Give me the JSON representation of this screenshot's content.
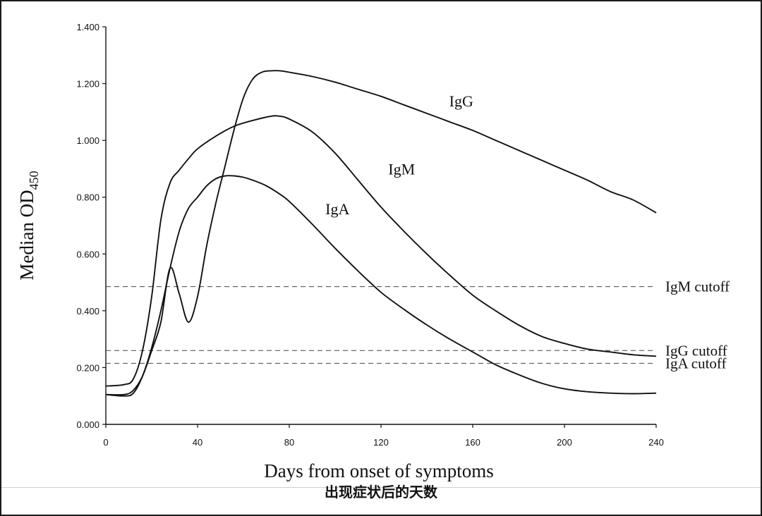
{
  "chart_data": {
    "type": "line",
    "xlabel": "Days from onset of symptoms",
    "ylabel_main": "Median OD",
    "ylabel_sub": "450",
    "xlim": [
      0,
      240
    ],
    "ylim": [
      0,
      1.4
    ],
    "xticks": [
      0,
      40,
      80,
      120,
      160,
      200,
      240
    ],
    "xtick_labels": [
      "0",
      "40",
      "80",
      "120",
      "160",
      "200",
      "240"
    ],
    "yticks": [
      0,
      0.2,
      0.4,
      0.6,
      0.8,
      1.0,
      1.2,
      1.4
    ],
    "ytick_labels": [
      "0.000",
      "0.200",
      "0.400",
      "0.600",
      "0.800",
      "1.000",
      "1.200",
      "1.400"
    ],
    "grid": false,
    "series": [
      {
        "name": "IgG",
        "x": [
          0,
          8,
          12,
          16,
          20,
          24,
          28,
          32,
          36,
          40,
          44,
          48,
          52,
          56,
          60,
          64,
          68,
          72,
          76,
          80,
          90,
          100,
          110,
          120,
          130,
          140,
          150,
          160,
          170,
          180,
          190,
          200,
          210,
          220,
          230,
          240
        ],
        "y": [
          0.105,
          0.105,
          0.12,
          0.17,
          0.26,
          0.36,
          0.55,
          0.46,
          0.36,
          0.45,
          0.63,
          0.78,
          0.91,
          1.04,
          1.15,
          1.215,
          1.24,
          1.245,
          1.245,
          1.24,
          1.225,
          1.205,
          1.18,
          1.155,
          1.125,
          1.095,
          1.065,
          1.035,
          1.0,
          0.965,
          0.93,
          0.895,
          0.86,
          0.82,
          0.79,
          0.745
        ]
      },
      {
        "name": "IgM",
        "x": [
          0,
          8,
          12,
          16,
          20,
          24,
          28,
          32,
          36,
          40,
          48,
          56,
          64,
          72,
          76,
          80,
          90,
          100,
          110,
          120,
          130,
          140,
          150,
          160,
          170,
          180,
          190,
          200,
          210,
          220,
          230,
          240
        ],
        "y": [
          0.135,
          0.14,
          0.16,
          0.26,
          0.45,
          0.72,
          0.85,
          0.895,
          0.935,
          0.97,
          1.015,
          1.05,
          1.07,
          1.085,
          1.085,
          1.075,
          1.03,
          0.955,
          0.86,
          0.765,
          0.68,
          0.6,
          0.525,
          0.455,
          0.4,
          0.35,
          0.31,
          0.285,
          0.265,
          0.255,
          0.245,
          0.24
        ]
      },
      {
        "name": "IgA",
        "x": [
          0,
          8,
          12,
          16,
          20,
          24,
          28,
          32,
          36,
          40,
          44,
          48,
          52,
          56,
          60,
          64,
          70,
          76,
          80,
          90,
          100,
          110,
          120,
          130,
          140,
          150,
          160,
          170,
          180,
          190,
          200,
          210,
          220,
          230,
          240
        ],
        "y": [
          0.105,
          0.1,
          0.11,
          0.17,
          0.27,
          0.4,
          0.55,
          0.68,
          0.76,
          0.8,
          0.84,
          0.865,
          0.875,
          0.875,
          0.87,
          0.86,
          0.84,
          0.81,
          0.785,
          0.705,
          0.62,
          0.54,
          0.465,
          0.405,
          0.35,
          0.3,
          0.255,
          0.21,
          0.175,
          0.145,
          0.125,
          0.115,
          0.11,
          0.108,
          0.11
        ]
      }
    ],
    "series_labels": [
      {
        "text": "IgG",
        "x": 155,
        "y": 1.12
      },
      {
        "text": "IgM",
        "x": 129,
        "y": 0.88
      },
      {
        "text": "IgA",
        "x": 101,
        "y": 0.74
      }
    ],
    "cutoffs": [
      {
        "name": "IgM cutoff",
        "value": 0.485
      },
      {
        "name": "IgG cutoff",
        "value": 0.26
      },
      {
        "name": "IgA cutoff",
        "value": 0.215
      }
    ],
    "annotations": [
      "IgG",
      "IgM",
      "IgA"
    ]
  },
  "caption_cn": "出现症状后的天数"
}
